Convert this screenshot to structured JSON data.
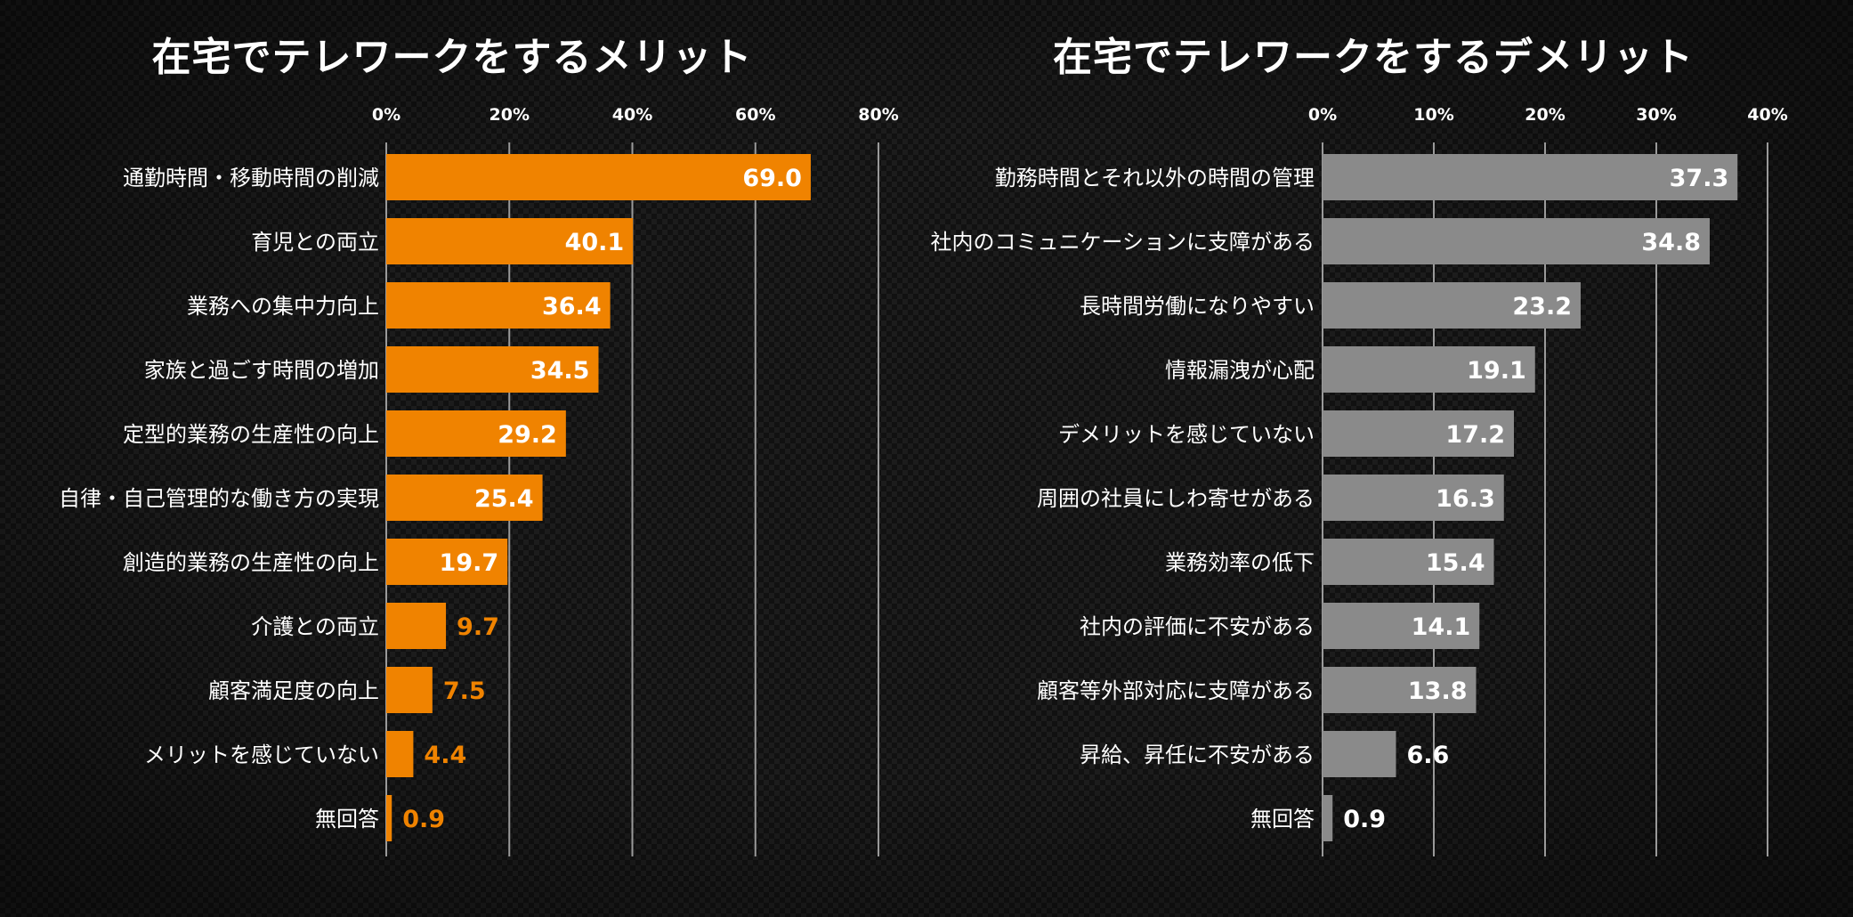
{
  "chart_data": [
    {
      "id": "merits",
      "type": "bar",
      "orientation": "horizontal",
      "title": "在宅でテレワークをするメリット",
      "xlabel": "",
      "ylabel": "",
      "xlim": [
        0,
        80
      ],
      "ticks": [
        0,
        20,
        40,
        60,
        80
      ],
      "tick_labels": [
        "0%",
        "20%",
        "40%",
        "60%",
        "80%"
      ],
      "grid": true,
      "color": "#f08300",
      "categories": [
        "通勤時間・移動時間の削減",
        "育児との両立",
        "業務への集中力向上",
        "家族と過ごす時間の増加",
        "定型的業務の生産性の向上",
        "自律・自己管理的な働き方の実現",
        "創造的業務の生産性の向上",
        "介護との両立",
        "顧客満足度の向上",
        "メリットを感じていない",
        "無回答"
      ],
      "values": [
        69.0,
        40.1,
        36.4,
        34.5,
        29.2,
        25.4,
        19.7,
        9.7,
        7.5,
        4.4,
        0.9
      ],
      "value_labels": [
        "69.0",
        "40.1",
        "36.4",
        "34.5",
        "29.2",
        "25.4",
        "19.7",
        "9.7",
        "7.5",
        "4.4",
        "0.9"
      ]
    },
    {
      "id": "demerits",
      "type": "bar",
      "orientation": "horizontal",
      "title": "在宅でテレワークをするデメリット",
      "xlabel": "",
      "ylabel": "",
      "xlim": [
        0,
        40
      ],
      "ticks": [
        0,
        10,
        20,
        30,
        40
      ],
      "tick_labels": [
        "0%",
        "10%",
        "20%",
        "30%",
        "40%"
      ],
      "grid": true,
      "color": "#8a8a8a",
      "categories": [
        "勤務時間とそれ以外の時間の管理",
        "社内のコミュニケーションに支障がある",
        "長時間労働になりやすい",
        "情報漏洩が心配",
        "デメリットを感じていない",
        "周囲の社員にしわ寄せがある",
        "業務効率の低下",
        "社内の評価に不安がある",
        "顧客等外部対応に支障がある",
        "昇給、昇任に不安がある",
        "無回答"
      ],
      "values": [
        37.3,
        34.8,
        23.2,
        19.1,
        17.2,
        16.3,
        15.4,
        14.1,
        13.8,
        6.6,
        0.9
      ],
      "value_labels": [
        "37.3",
        "34.8",
        "23.2",
        "19.1",
        "17.2",
        "16.3",
        "15.4",
        "14.1",
        "13.8",
        "6.6",
        "0.9"
      ]
    }
  ]
}
